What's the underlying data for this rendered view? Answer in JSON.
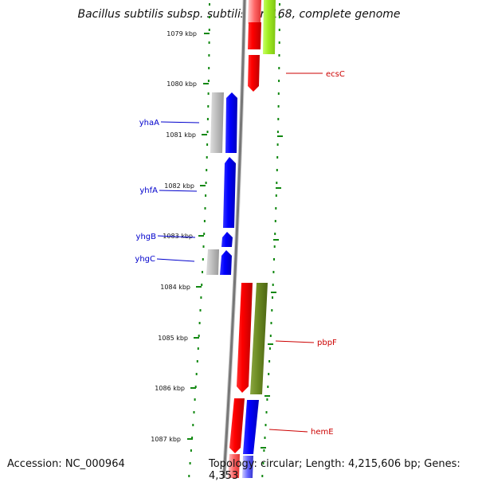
{
  "title": "Bacillus subtilis subsp. subtilis str. 168, complete genome",
  "footer": {
    "accession": "Accession: NC_000964",
    "topology": "Topology: circular; Length: 4,215,606 bp; Genes: 4,353"
  },
  "ticks": [
    {
      "label": "1079 kbp"
    },
    {
      "label": "1080 kbp"
    },
    {
      "label": "1081 kbp"
    },
    {
      "label": "1082 kbp"
    },
    {
      "label": "1083 kbp"
    },
    {
      "label": "1084 kbp"
    },
    {
      "label": "1085 kbp"
    },
    {
      "label": "1086 kbp"
    },
    {
      "label": "1087 kbp"
    }
  ],
  "gene_labels": [
    {
      "name": "ecsC",
      "strand": "forward",
      "color": "#cc0000"
    },
    {
      "name": "yhaA",
      "strand": "reverse",
      "color": "#0000cc"
    },
    {
      "name": "yhfA",
      "strand": "reverse",
      "color": "#0000cc"
    },
    {
      "name": "yhgB",
      "strand": "reverse",
      "color": "#0000cc"
    },
    {
      "name": "yhgC",
      "strand": "reverse",
      "color": "#0000cc"
    },
    {
      "name": "pbpF",
      "strand": "forward",
      "color": "#cc0000"
    },
    {
      "name": "hemE",
      "strand": "forward",
      "color": "#cc0000"
    }
  ],
  "colors": {
    "forward_cds": "#ff0000",
    "reverse_cds": "#0000ff",
    "forward_gene": "#99ee22",
    "forward_gene_dark": "#6b8a22",
    "reverse_gene": "#aaaaaa",
    "backbone": "#777777",
    "ticks": "#118811"
  }
}
